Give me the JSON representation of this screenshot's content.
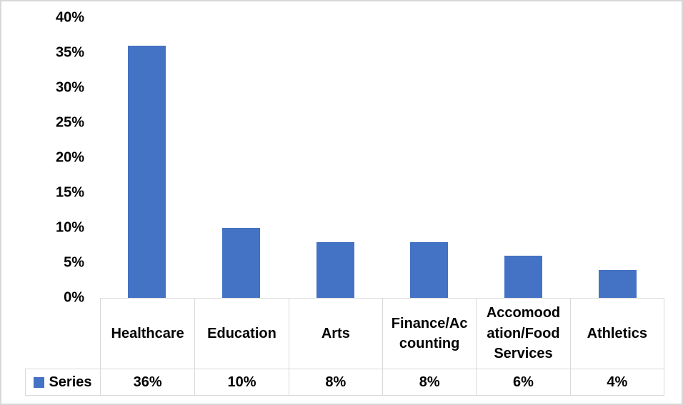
{
  "chart_data": {
    "type": "bar",
    "title": "",
    "xlabel": "",
    "ylabel": "",
    "series_name": "Series",
    "categories": [
      "Healthcare",
      "Education",
      "Arts",
      "Finance/Accounting",
      "Accomoodation/Food Services",
      "Athletics"
    ],
    "category_display_labels": [
      "Healthcare",
      "Education",
      "Arts",
      "Finance/Ac\ncounting",
      "Accomood\nation/Food\nServices",
      "Athletics"
    ],
    "values": [
      36,
      10,
      8,
      8,
      6,
      4
    ],
    "value_labels": [
      "36%",
      "10%",
      "8%",
      "8%",
      "6%",
      "4%"
    ],
    "ylim": [
      0,
      40
    ],
    "ytick_step": 5,
    "ytick_labels": [
      "40%",
      "35%",
      "30%",
      "25%",
      "20%",
      "15%",
      "10%",
      "5%",
      "0%"
    ],
    "grid": false,
    "legend_position": "bottom-left-data-table",
    "colors": {
      "bar": "#4472C4",
      "legend_swatch": "#4472C4",
      "table_border": "#d9d9d9",
      "frame_border": "#d8d8d8",
      "text": "#000000",
      "background": "#ffffff"
    }
  }
}
